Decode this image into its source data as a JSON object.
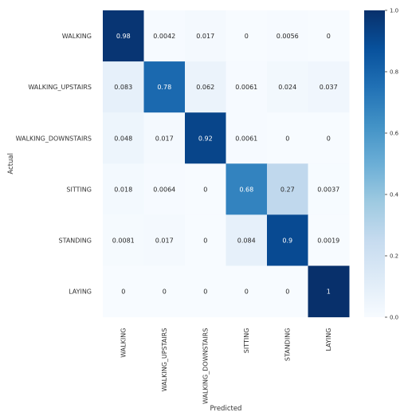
{
  "chart_data": {
    "type": "heatmap",
    "title": "",
    "xlabel": "Predicted",
    "ylabel": "Actual",
    "x_categories": [
      "WALKING",
      "WALKING_UPSTAIRS",
      "WALKING_DOWNSTAIRS",
      "SITTING",
      "STANDING",
      "LAYING"
    ],
    "y_categories": [
      "WALKING",
      "WALKING_UPSTAIRS",
      "WALKING_DOWNSTAIRS",
      "SITTING",
      "STANDING",
      "LAYING"
    ],
    "values": [
      [
        0.98,
        0.0042,
        0.017,
        0,
        0.0056,
        0
      ],
      [
        0.083,
        0.78,
        0.062,
        0.0061,
        0.024,
        0.037
      ],
      [
        0.048,
        0.017,
        0.92,
        0.0061,
        0,
        0
      ],
      [
        0.018,
        0.0064,
        0,
        0.68,
        0.27,
        0.0037
      ],
      [
        0.0081,
        0.017,
        0,
        0.084,
        0.9,
        0.0019
      ],
      [
        0,
        0,
        0,
        0,
        0,
        1
      ]
    ],
    "annotations": [
      [
        "0.98",
        "0.0042",
        "0.017",
        "0",
        "0.0056",
        "0"
      ],
      [
        "0.083",
        "0.78",
        "0.062",
        "0.0061",
        "0.024",
        "0.037"
      ],
      [
        "0.048",
        "0.017",
        "0.92",
        "0.0061",
        "0",
        "0"
      ],
      [
        "0.018",
        "0.0064",
        "0",
        "0.68",
        "0.27",
        "0.0037"
      ],
      [
        "0.0081",
        "0.017",
        "0",
        "0.084",
        "0.9",
        "0.0019"
      ],
      [
        "0",
        "0",
        "0",
        "0",
        "0",
        "1"
      ]
    ],
    "colormap": "Blues",
    "colormap_stops": [
      "#f7fbff",
      "#deebf7",
      "#c6dbef",
      "#9ecae1",
      "#6baed6",
      "#4292c6",
      "#2171b5",
      "#08519c",
      "#08306b"
    ],
    "colorbar": {
      "range": [
        0,
        1
      ],
      "ticks": [
        "0.0",
        "0.2",
        "0.4",
        "0.6",
        "0.8",
        "1.0"
      ]
    },
    "grid": false
  }
}
